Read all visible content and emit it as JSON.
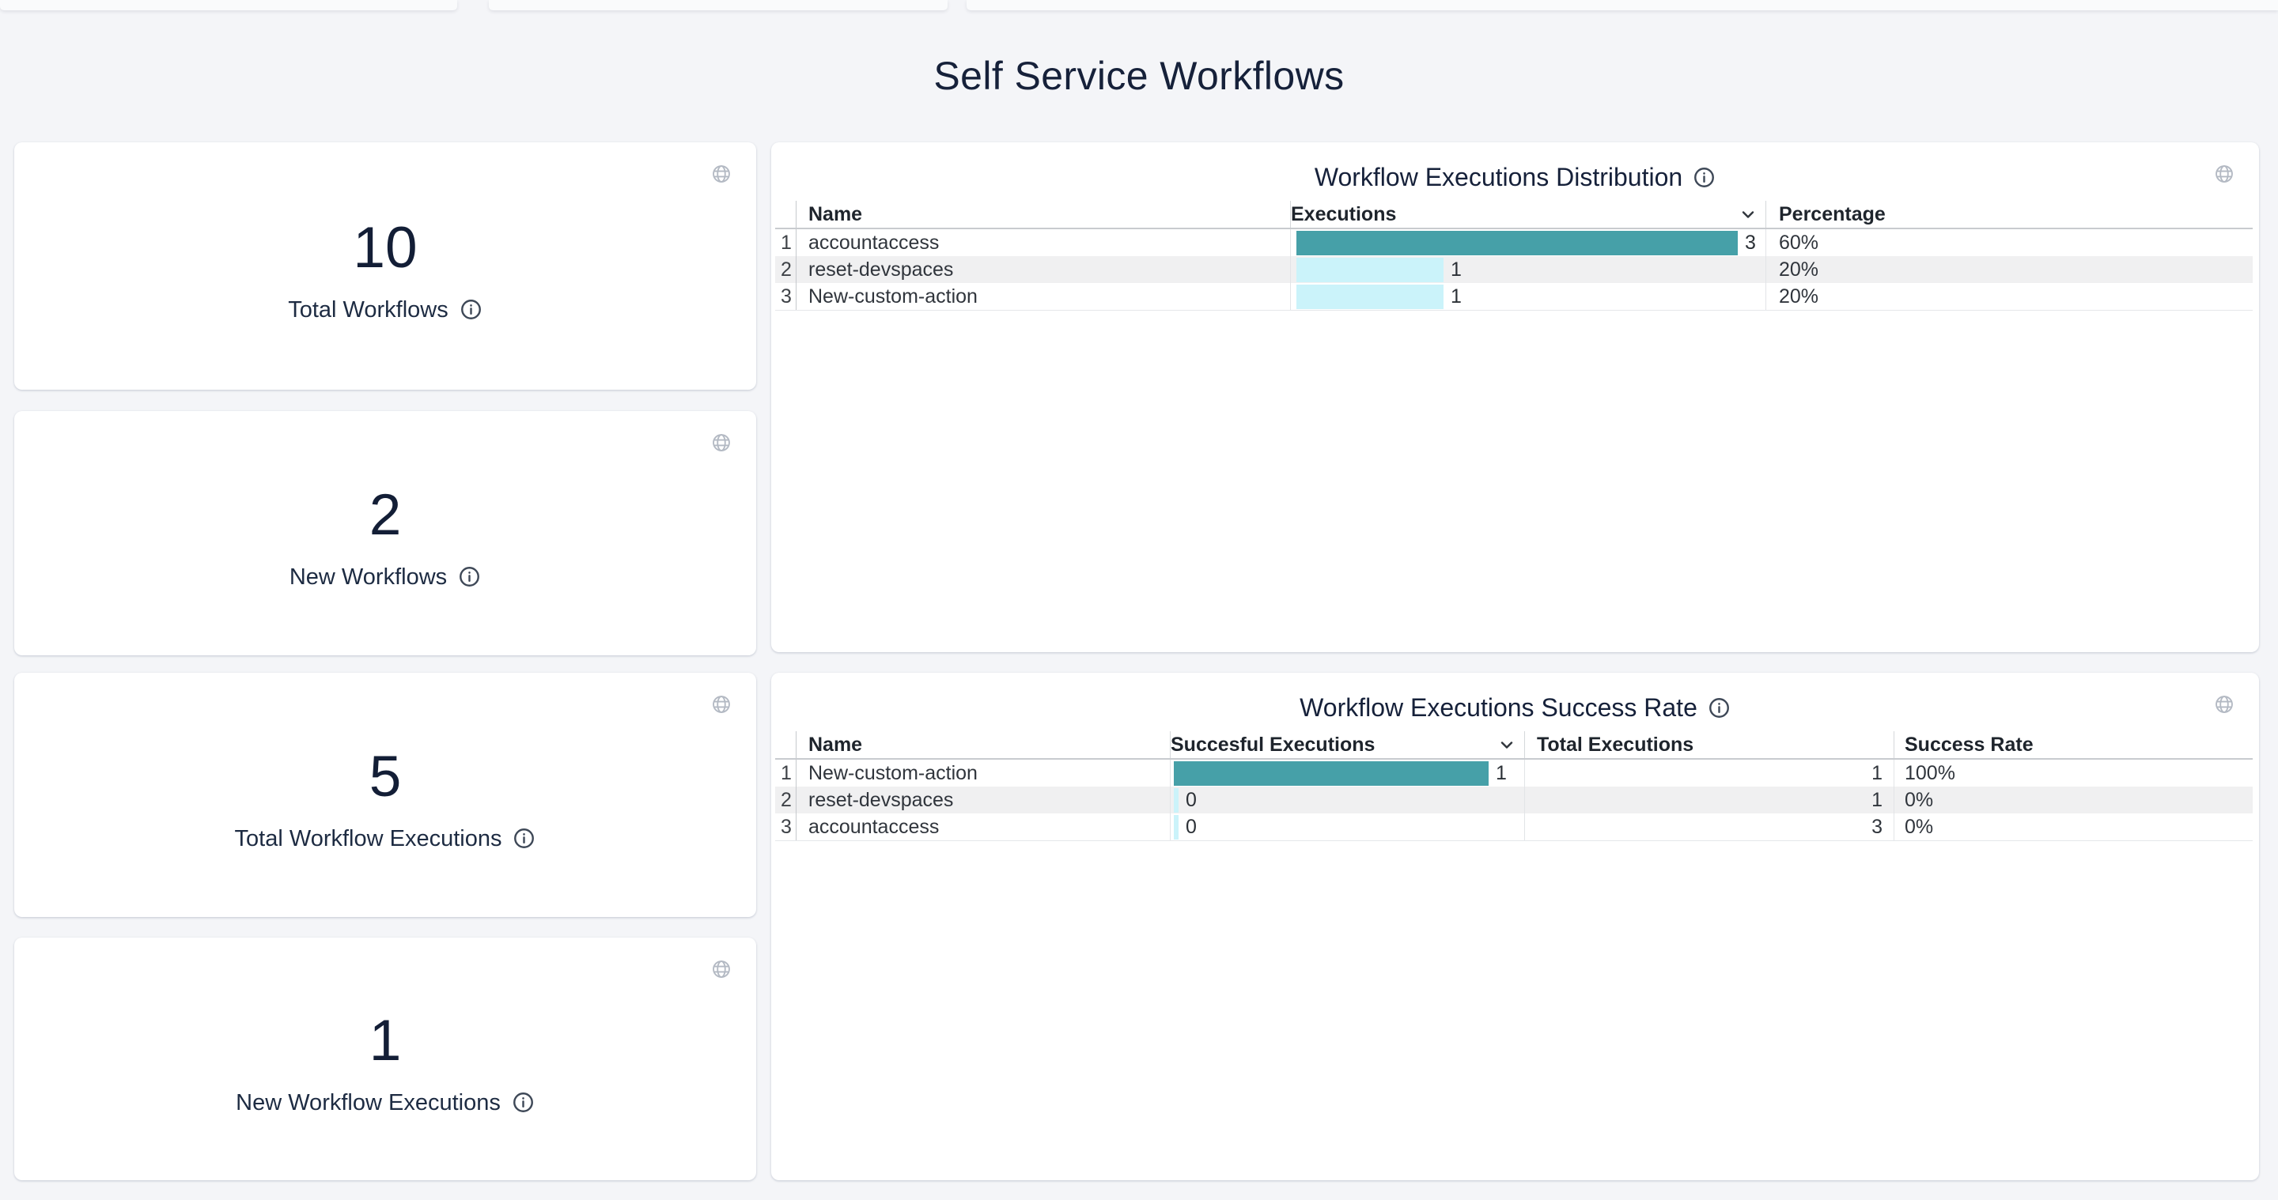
{
  "page": {
    "title": "Self Service Workflows"
  },
  "colors": {
    "bar_primary": "#46a0a8",
    "bar_secondary": "#cbf3fa"
  },
  "stat_cards": [
    {
      "value": "10",
      "label": "Total Workflows"
    },
    {
      "value": "2",
      "label": "New Workflows"
    },
    {
      "value": "5",
      "label": "Total Workflow Executions"
    },
    {
      "value": "1",
      "label": "New Workflow Executions"
    }
  ],
  "distribution_panel": {
    "title": "Workflow Executions Distribution",
    "columns": {
      "name": "Name",
      "executions": "Executions",
      "percentage": "Percentage"
    },
    "rows": [
      {
        "index": "1",
        "name": "accountaccess",
        "executions": 3,
        "percentage": "60%"
      },
      {
        "index": "2",
        "name": "reset-devspaces",
        "executions": 1,
        "percentage": "20%"
      },
      {
        "index": "3",
        "name": "New-custom-action",
        "executions": 1,
        "percentage": "20%"
      }
    ]
  },
  "success_panel": {
    "title": "Workflow Executions Success Rate",
    "columns": {
      "name": "Name",
      "successful": "Succesful Executions",
      "total": "Total Executions",
      "rate": "Success Rate"
    },
    "rows": [
      {
        "index": "1",
        "name": "New-custom-action",
        "successful": 1,
        "total": "1",
        "rate": "100%"
      },
      {
        "index": "2",
        "name": "reset-devspaces",
        "successful": 0,
        "total": "1",
        "rate": "0%"
      },
      {
        "index": "3",
        "name": "accountaccess",
        "successful": 0,
        "total": "3",
        "rate": "0%"
      }
    ]
  },
  "chart_data": [
    {
      "type": "bar",
      "orientation": "horizontal",
      "title": "Workflow Executions Distribution",
      "categories": [
        "accountaccess",
        "reset-devspaces",
        "New-custom-action"
      ],
      "values": [
        3,
        1,
        1
      ],
      "percentages": [
        "60%",
        "20%",
        "20%"
      ]
    },
    {
      "type": "bar",
      "orientation": "horizontal",
      "title": "Workflow Executions Success Rate",
      "categories": [
        "New-custom-action",
        "reset-devspaces",
        "accountaccess"
      ],
      "series": [
        {
          "name": "Succesful Executions",
          "values": [
            1,
            0,
            0
          ]
        },
        {
          "name": "Total Executions",
          "values": [
            1,
            1,
            3
          ]
        }
      ],
      "success_rates": [
        "100%",
        "0%",
        "0%"
      ]
    }
  ]
}
